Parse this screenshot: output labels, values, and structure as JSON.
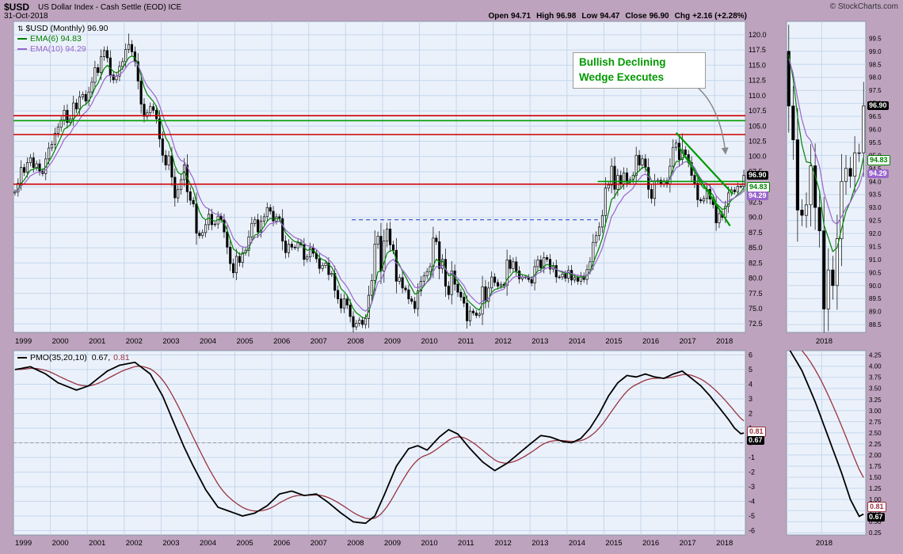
{
  "header": {
    "symbol": "$USD",
    "title": "US Dollar Index - Cash Settle (EOD) ICE",
    "copyright": "© StockCharts.com",
    "date": "31-Oct-2018",
    "quote": [
      {
        "label": "Open",
        "value": "94.71"
      },
      {
        "label": "High",
        "value": "96.98"
      },
      {
        "label": "Low",
        "value": "94.47"
      },
      {
        "label": "Close",
        "value": "96.90"
      },
      {
        "label": "Chg",
        "value": "+2.16 (+2.28%)"
      }
    ]
  },
  "price_panel": {
    "legend_icon": "⇅",
    "legend": {
      "symbol": "$USD (Monthly) 96.90",
      "ema6": "EMA(6) 94.83",
      "ema10": "EMA(10) 94.29"
    },
    "annotation": {
      "line1": "Bullish Declining",
      "line2": "Wedge Executes"
    },
    "tags": {
      "close": "96.90",
      "ema6": "94.83",
      "ema10": "94.29"
    }
  },
  "pmo_panel": {
    "legend": {
      "name": "PMO(35,20,10)",
      "value": "0.67,",
      "signal": "0.81"
    },
    "tags": {
      "pmo": "0.67",
      "signal": "0.81"
    }
  },
  "axes": {
    "price_y": [
      "120.0",
      "117.5",
      "115.0",
      "112.5",
      "110.0",
      "107.5",
      "105.0",
      "102.5",
      "100.0",
      "97.5",
      "95.0",
      "92.5",
      "90.0",
      "87.5",
      "85.0",
      "82.5",
      "80.0",
      "77.5",
      "75.0",
      "72.5"
    ],
    "zoom_price_y": [
      "99.5",
      "99.0",
      "98.5",
      "98.0",
      "97.5",
      "97.0",
      "96.5",
      "96.0",
      "95.5",
      "95.0",
      "94.5",
      "94.0",
      "93.5",
      "93.0",
      "92.5",
      "92.0",
      "91.5",
      "91.0",
      "90.5",
      "90.0",
      "89.5",
      "89.0",
      "88.5"
    ],
    "pmo_y": [
      "6",
      "5",
      "4",
      "3",
      "2",
      "1",
      "0",
      "-1",
      "-2",
      "-3",
      "-4",
      "-5",
      "-6"
    ],
    "zoom_pmo_y": [
      "4.25",
      "4.00",
      "3.75",
      "3.50",
      "3.25",
      "3.00",
      "2.75",
      "2.50",
      "2.25",
      "2.00",
      "1.75",
      "1.50",
      "1.25",
      "1.00",
      "0.75",
      "0.50",
      "0.25"
    ],
    "years": [
      "1999",
      "2000",
      "2001",
      "2002",
      "2003",
      "2004",
      "2005",
      "2006",
      "2007",
      "2008",
      "2009",
      "2010",
      "2011",
      "2012",
      "2013",
      "2014",
      "2015",
      "2016",
      "2017",
      "2018"
    ],
    "zoom_x_label": "2018"
  },
  "style": {
    "page_bg": "#BEA3BE",
    "panel_bg": "#EBF1FA",
    "grid": "#C3D7EE",
    "panel_border": "#8A97A8",
    "candle": "#000000",
    "ema6": "#008000",
    "ema10": "#9966CC",
    "red_line": "#CC0000",
    "green_line": "#009900",
    "blue_dashed": "#3344CC",
    "pmo": "#000000",
    "pmo_signal": "#993340",
    "annotation_green": "#009900",
    "arrow": "#888888"
  },
  "chart_data": {
    "type": "candlestick",
    "symbol": "$USD",
    "timeframe": "Monthly",
    "x_start": "1999-01",
    "x_end": "2018-10",
    "zoom_start_index": 220,
    "price": {
      "ylim": [
        71.1,
        122.2
      ],
      "zoom_ylim": [
        88.2,
        100.15
      ],
      "first_open": 94.0,
      "monthly_closes": [
        {
          "year": 1999,
          "closes": [
            94.2,
            95.6,
            98.2,
            97.4,
            99.0,
            99.8,
            98.2,
            98.8,
            97.6,
            97.2,
            99.6,
            101.4
          ]
        },
        {
          "year": 2000,
          "closes": [
            102.0,
            103.8,
            104.8,
            106.0,
            107.6,
            105.6,
            106.2,
            108.8,
            107.8,
            109.8,
            110.2,
            109.1
          ]
        },
        {
          "year": 2001,
          "closes": [
            110.6,
            112.2,
            114.6,
            113.8,
            116.4,
            117.4,
            116.2,
            113.4,
            112.6,
            113.2,
            114.8,
            115.6
          ]
        },
        {
          "year": 2002,
          "closes": [
            117.6,
            118.4,
            117.2,
            115.6,
            112.4,
            108.6,
            106.6,
            107.2,
            108.2,
            107.6,
            106.2,
            102.9
          ]
        },
        {
          "year": 2003,
          "closes": [
            100.2,
            98.6,
            100.1,
            96.6,
            93.2,
            94.6,
            96.2,
            98.6,
            94.2,
            92.8,
            92.2,
            87.4
          ]
        },
        {
          "year": 2004,
          "closes": [
            87.0,
            87.5,
            88.8,
            90.5,
            88.8,
            88.9,
            90.2,
            89.6,
            87.6,
            85.1,
            82.4,
            80.9
          ]
        },
        {
          "year": 2005,
          "closes": [
            83.6,
            82.6,
            84.2,
            84.6,
            86.8,
            89.0,
            89.6,
            87.6,
            89.4,
            90.1,
            91.6,
            91.0
          ]
        },
        {
          "year": 2006,
          "closes": [
            89.4,
            90.1,
            89.8,
            86.1,
            84.2,
            85.6,
            85.1,
            85.0,
            85.8,
            85.5,
            83.1,
            83.5
          ]
        },
        {
          "year": 2007,
          "closes": [
            85.0,
            84.1,
            83.2,
            81.6,
            82.1,
            82.5,
            80.6,
            80.8,
            78.0,
            76.6,
            75.1,
            76.6
          ]
        },
        {
          "year": 2008,
          "closes": [
            75.6,
            73.7,
            72.0,
            72.6,
            73.1,
            72.4,
            73.4,
            77.2,
            79.6,
            85.6,
            86.9,
            81.2
          ]
        },
        {
          "year": 2009,
          "closes": [
            86.1,
            88.1,
            85.5,
            84.6,
            79.5,
            80.1,
            78.4,
            78.1,
            76.6,
            76.2,
            75.0,
            77.9
          ]
        },
        {
          "year": 2010,
          "closes": [
            79.5,
            80.4,
            81.1,
            81.9,
            86.6,
            86.0,
            81.6,
            83.1,
            78.7,
            77.3,
            81.2,
            79.0
          ]
        },
        {
          "year": 2011,
          "closes": [
            77.7,
            76.9,
            75.9,
            73.0,
            74.6,
            74.3,
            73.9,
            74.1,
            78.6,
            76.2,
            78.4,
            80.2
          ]
        },
        {
          "year": 2012,
          "closes": [
            79.3,
            78.7,
            79.0,
            78.8,
            83.0,
            81.6,
            82.7,
            81.2,
            79.9,
            80.2,
            80.2,
            79.8
          ]
        },
        {
          "year": 2013,
          "closes": [
            79.2,
            81.9,
            83.0,
            81.7,
            83.4,
            83.1,
            81.5,
            82.1,
            80.2,
            80.2,
            80.7,
            80.0
          ]
        },
        {
          "year": 2014,
          "closes": [
            81.3,
            79.7,
            80.1,
            79.5,
            80.4,
            79.8,
            81.4,
            82.7,
            85.9,
            87.0,
            88.4,
            90.3
          ]
        },
        {
          "year": 2015,
          "closes": [
            94.8,
            95.3,
            98.4,
            94.6,
            96.9,
            95.5,
            97.3,
            95.8,
            96.2,
            96.9,
            100.2,
            98.6
          ]
        },
        {
          "year": 2016,
          "closes": [
            99.6,
            98.2,
            94.6,
            93.1,
            95.9,
            96.1,
            95.5,
            96.0,
            95.4,
            98.4,
            101.5,
            102.2
          ]
        },
        {
          "year": 2017,
          "closes": [
            99.5,
            101.1,
            100.3,
            99.0,
            96.9,
            95.6,
            92.9,
            92.7,
            93.1,
            94.6,
            93.0,
            92.1
          ]
        },
        {
          "year": 2018,
          "closes": [
            89.1,
            90.6,
            90.0,
            91.8,
            94.0,
            94.5,
            94.2,
            95.1,
            95.1,
            96.9
          ]
        }
      ],
      "wick_overrides": {
        "37": {
          "high": 120.2
        },
        "110": {
          "low": 70.7
        },
        "217": {
          "high": 103.8
        },
        "229": {
          "low": 88.25
        }
      },
      "overlays": [
        {
          "name": "EMA(6)",
          "period": 6,
          "color": "#008000"
        },
        {
          "name": "EMA(10)",
          "period": 10,
          "color": "#9966CC"
        }
      ],
      "hlines_red": [
        106.7,
        103.6,
        95.45
      ],
      "hlines_green": [
        {
          "value": 105.9
        },
        {
          "value": 95.9,
          "from_month": 190
        }
      ],
      "dashed_blue": {
        "value": 89.6,
        "from_month": 110,
        "to_month": 190
      },
      "wedge": {
        "upper": [
          [
            215.5,
            103.9
          ],
          [
            234.0,
            93.8
          ]
        ],
        "lower": [
          [
            216.5,
            101.5
          ],
          [
            233.0,
            88.6
          ]
        ]
      }
    },
    "pmo": {
      "ylim": [
        -6.3,
        6.3
      ],
      "zoom_ylim": [
        0.2,
        4.35
      ],
      "signal_period": 10,
      "keypoints": [
        [
          0,
          5.0
        ],
        [
          5,
          5.2
        ],
        [
          10,
          4.7
        ],
        [
          14,
          4.1
        ],
        [
          20,
          3.6
        ],
        [
          24,
          3.9
        ],
        [
          30,
          4.9
        ],
        [
          34,
          5.3
        ],
        [
          39,
          5.5
        ],
        [
          44,
          4.7
        ],
        [
          48,
          3.2
        ],
        [
          52,
          1.2
        ],
        [
          55,
          -0.3
        ],
        [
          58,
          -1.6
        ],
        [
          62,
          -3.2
        ],
        [
          66,
          -4.4
        ],
        [
          70,
          -4.7
        ],
        [
          74,
          -5.0
        ],
        [
          78,
          -4.8
        ],
        [
          82,
          -4.3
        ],
        [
          86,
          -3.5
        ],
        [
          90,
          -3.3
        ],
        [
          94,
          -3.6
        ],
        [
          98,
          -3.5
        ],
        [
          102,
          -4.1
        ],
        [
          106,
          -4.8
        ],
        [
          110,
          -5.4
        ],
        [
          114,
          -5.5
        ],
        [
          117,
          -5.0
        ],
        [
          120,
          -3.6
        ],
        [
          124,
          -1.6
        ],
        [
          128,
          -0.4
        ],
        [
          131,
          -0.2
        ],
        [
          134,
          -0.5
        ],
        [
          138,
          0.4
        ],
        [
          141,
          0.9
        ],
        [
          144,
          0.6
        ],
        [
          148,
          -0.4
        ],
        [
          152,
          -1.3
        ],
        [
          156,
          -1.9
        ],
        [
          160,
          -1.4
        ],
        [
          164,
          -0.7
        ],
        [
          168,
          0.0
        ],
        [
          171,
          0.5
        ],
        [
          174,
          0.4
        ],
        [
          178,
          0.1
        ],
        [
          181,
          0.0
        ],
        [
          184,
          0.3
        ],
        [
          187,
          1.0
        ],
        [
          190,
          2.0
        ],
        [
          193,
          3.2
        ],
        [
          196,
          4.1
        ],
        [
          199,
          4.6
        ],
        [
          202,
          4.5
        ],
        [
          205,
          4.7
        ],
        [
          208,
          4.5
        ],
        [
          211,
          4.4
        ],
        [
          214,
          4.7
        ],
        [
          217,
          4.9
        ],
        [
          220,
          4.4
        ],
        [
          223,
          3.9
        ],
        [
          226,
          3.2
        ],
        [
          229,
          2.4
        ],
        [
          232,
          1.6
        ],
        [
          234,
          1.0
        ],
        [
          236,
          0.62
        ],
        [
          237,
          0.67
        ]
      ]
    }
  }
}
